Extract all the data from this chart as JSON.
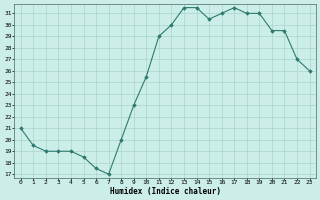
{
  "x": [
    0,
    1,
    2,
    3,
    4,
    5,
    6,
    7,
    8,
    9,
    10,
    11,
    12,
    13,
    14,
    15,
    16,
    17,
    18,
    19,
    20,
    21,
    22,
    23
  ],
  "y": [
    21,
    19.5,
    19,
    19,
    19,
    18.5,
    17.5,
    17,
    20,
    23,
    25.5,
    29,
    30,
    31.5,
    31.5,
    30.5,
    31,
    31.5,
    31,
    31,
    29.5,
    29.5,
    27,
    26
  ],
  "line_color": "#2d7b6e",
  "marker": "D",
  "markersize": 1.8,
  "bg_color": "#cceee8",
  "grid_color": "#aad4cc",
  "xlabel": "Humidex (Indice chaleur)",
  "xlim": [
    -0.5,
    23.5
  ],
  "ylim": [
    16.7,
    31.8
  ],
  "yticks": [
    17,
    18,
    19,
    20,
    21,
    22,
    23,
    24,
    25,
    26,
    27,
    28,
    29,
    30,
    31
  ],
  "xticks": [
    0,
    1,
    2,
    3,
    4,
    5,
    6,
    7,
    8,
    9,
    10,
    11,
    12,
    13,
    14,
    15,
    16,
    17,
    18,
    19,
    20,
    21,
    22,
    23
  ]
}
